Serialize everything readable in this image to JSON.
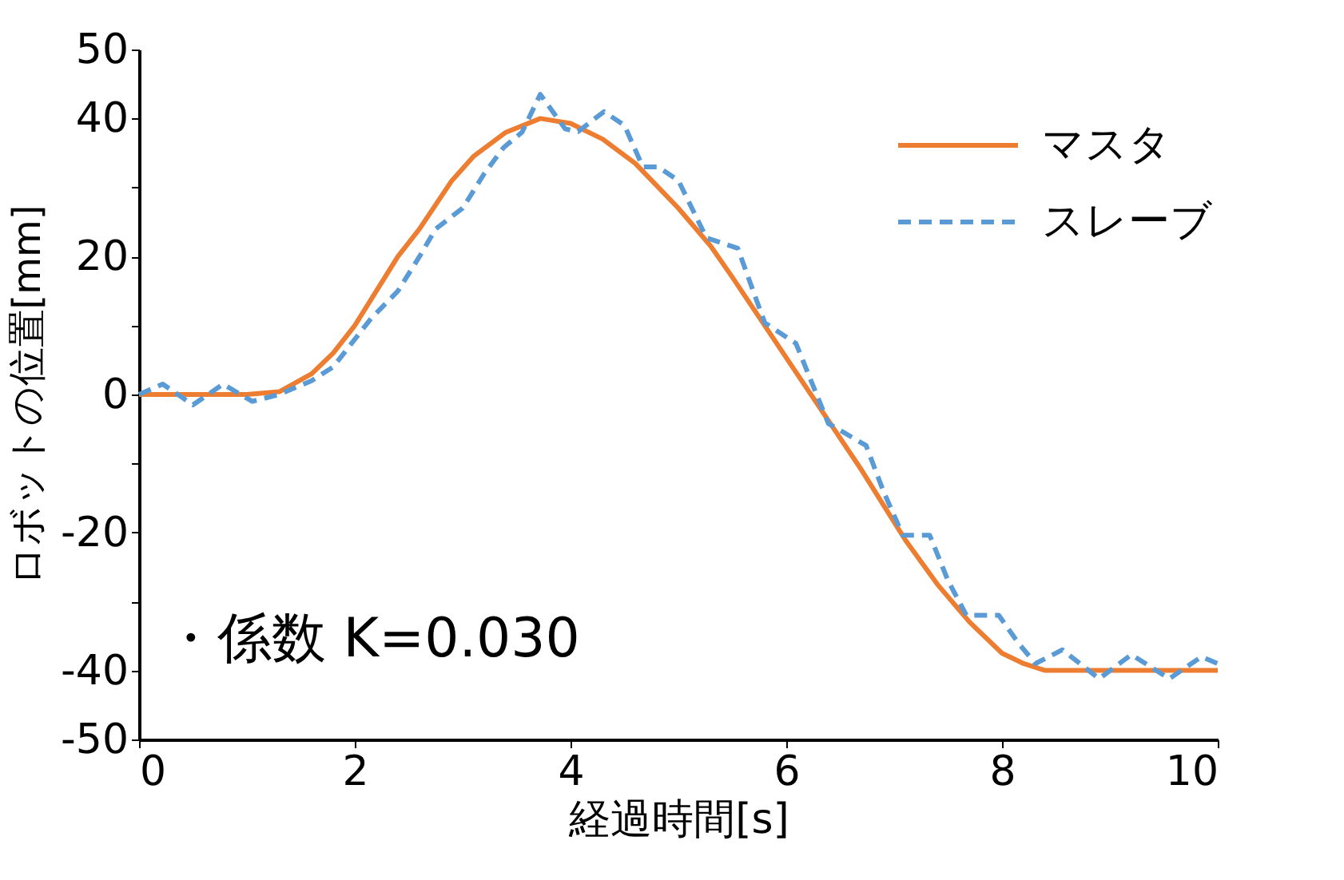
{
  "chart_data": {
    "type": "line",
    "xlabel": "経過時間[s]",
    "ylabel": "ロボットの位置[mm]",
    "xlim": [
      0,
      10
    ],
    "xticks": [
      0,
      2,
      4,
      6,
      8,
      10
    ],
    "ylim": [
      -50,
      50
    ],
    "yticks": [
      -50,
      -40,
      {
        "value": -30,
        "label": null
      },
      -20,
      {
        "value": -10,
        "label": null
      },
      0,
      {
        "value": 10,
        "label": null
      },
      20,
      {
        "value": 30,
        "label": null
      },
      40,
      50
    ],
    "grid": false,
    "legend": "top right",
    "marker": "none",
    "annotations": [
      "・係数 K=0.030"
    ],
    "series": [
      {
        "name": "マスタ",
        "color": "#ed7d31",
        "line_style": "solid",
        "x": [
          0,
          0.5,
          1,
          1.3,
          1.6,
          1.8,
          2,
          2.2,
          2.4,
          2.6,
          2.9,
          3.1,
          3.4,
          3.72,
          4,
          4.3,
          4.6,
          5,
          5.3,
          5.5,
          5.8,
          6.1,
          6.4,
          6.7,
          7.1,
          7.4,
          7.7,
          8,
          8.2,
          8.4,
          8.7,
          9,
          10
        ],
        "values": [
          0,
          0,
          0,
          0.4,
          3,
          6,
          10,
          15,
          20,
          24,
          31,
          34.5,
          38,
          40,
          39.3,
          37,
          33.5,
          27,
          21.5,
          17,
          10,
          3,
          -4,
          -11,
          -21,
          -27.5,
          -33,
          -37.5,
          -39,
          -40,
          -40,
          -40,
          -40
        ]
      },
      {
        "name": "スレーブ",
        "color": "#5b9bd5",
        "line_style": "dashed",
        "x": [
          0,
          0.22,
          0.5,
          0.78,
          1.05,
          1.3,
          1.6,
          1.8,
          2.0,
          2.15,
          2.4,
          2.6,
          2.75,
          3.0,
          3.2,
          3.38,
          3.55,
          3.72,
          3.95,
          4.07,
          4.31,
          4.5,
          4.67,
          4.81,
          5.0,
          5.26,
          5.55,
          5.8,
          6.09,
          6.39,
          6.74,
          6.9,
          7.08,
          7.33,
          7.5,
          7.67,
          7.97,
          8.15,
          8.31,
          8.56,
          8.9,
          9.2,
          9.55,
          9.85,
          10
        ],
        "values": [
          0,
          1.5,
          -1.5,
          1.5,
          -1,
          0,
          2,
          4,
          8,
          11,
          15,
          20,
          24,
          27,
          32,
          35.8,
          38,
          43.5,
          38.5,
          38.1,
          41,
          39,
          33,
          33,
          31,
          22.7,
          21.2,
          10.4,
          7.4,
          -4.2,
          -7.4,
          -14,
          -20.4,
          -20.4,
          -27,
          -32,
          -32,
          -36,
          -39,
          -37,
          -41.2,
          -37.7,
          -41.2,
          -38,
          -39
        ]
      }
    ]
  }
}
